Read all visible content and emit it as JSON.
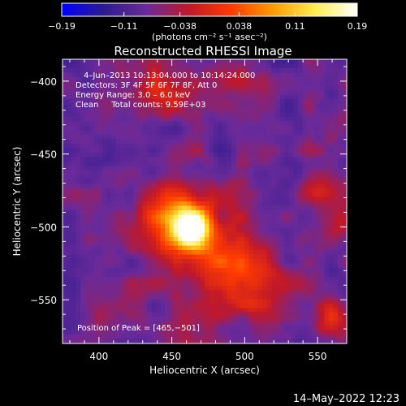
{
  "chart_data": {
    "type": "heatmap",
    "title": "Reconstructed RHESSI Image",
    "xlabel": "Heliocentric X (arcsec)",
    "ylabel": "Heliocentric Y (arcsec)",
    "xlim": [
      375,
      570
    ],
    "ylim": [
      -580,
      -385
    ],
    "x_ticks": [
      400,
      450,
      500,
      550
    ],
    "y_ticks": [
      -400,
      -450,
      -500,
      -550
    ],
    "x_tick_labels": [
      "400",
      "450",
      "500",
      "550"
    ],
    "y_tick_labels": [
      "−400",
      "−450",
      "−500",
      "−550"
    ],
    "colorbar": {
      "range": [
        -0.19,
        0.19
      ],
      "ticks": [
        -0.19,
        -0.11,
        -0.038,
        0.038,
        0.11,
        0.19
      ],
      "tick_labels": [
        "−0.19",
        "−0.11",
        "−0.038",
        "0.038",
        "0.11",
        "0.19"
      ],
      "colormap": [
        "#0000ff",
        "#2d1b8f",
        "#6a2a9a",
        "#c0182a",
        "#ff3a00",
        "#ff9a00",
        "#ffee50",
        "#ffffff"
      ]
    },
    "units_label": "(photons cm⁻² s⁻¹ asec⁻²)",
    "annotations": [
      "4–Jun–2013 10:13:04.000 to 10:14:24.000",
      "Detectors: 3F 4F 5F 6F 7F 8F, Att 0",
      "Energy Range: 3.0 – 6.0 keV",
      "Clean     Total counts: 9.59E+03"
    ],
    "peak_label": "Position of Peak = [465,−501]",
    "peak": [
      465,
      -501
    ],
    "sources": [
      {
        "x": 463,
        "y": -501,
        "amp": 0.23,
        "sigma": 9
      },
      {
        "x": 455,
        "y": -495,
        "amp": 0.12,
        "sigma": 20
      },
      {
        "x": 485,
        "y": -525,
        "amp": 0.09,
        "sigma": 18
      },
      {
        "x": 505,
        "y": -535,
        "amp": 0.06,
        "sigma": 16
      },
      {
        "x": 470,
        "y": -560,
        "amp": 0.05,
        "sigma": 14
      },
      {
        "x": 520,
        "y": -545,
        "amp": 0.04,
        "sigma": 14
      },
      {
        "x": 443,
        "y": -408,
        "amp": 0.08,
        "sigma": 12
      },
      {
        "x": 495,
        "y": -393,
        "amp": 0.04,
        "sigma": 10
      },
      {
        "x": 555,
        "y": -472,
        "amp": 0.07,
        "sigma": 10
      },
      {
        "x": 565,
        "y": -498,
        "amp": 0.06,
        "sigma": 9
      },
      {
        "x": 560,
        "y": -563,
        "amp": 0.07,
        "sigma": 10
      },
      {
        "x": 400,
        "y": -560,
        "amp": 0.03,
        "sigma": 10
      }
    ],
    "background": -0.085,
    "grid": false,
    "legend": "none"
  },
  "footer_date": "14–May–2022 12:23"
}
